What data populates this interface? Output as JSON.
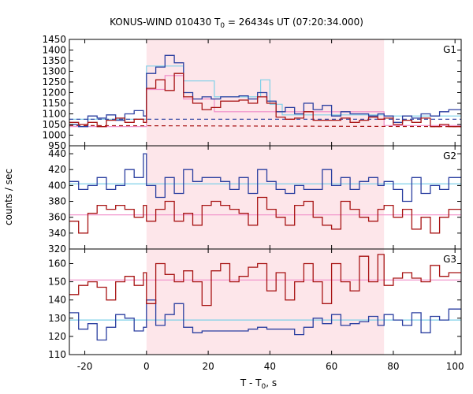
{
  "chart_data": {
    "type": "line",
    "title": "KONUS-WIND 010430 T",
    "title_sub": "0",
    "title_rest": " = 26434s UT (07:20:34.000)",
    "xlabel": "T - T",
    "xlabel_sub": "0",
    "xlabel_rest": ", s",
    "ylabel": "counts / sec",
    "xlim": [
      -25,
      102
    ],
    "x_ticks": [
      -20,
      0,
      20,
      40,
      60,
      80,
      100
    ],
    "x_tick_labels": [
      "-20",
      "0",
      "20",
      "40",
      "60",
      "80",
      "100"
    ],
    "highlight_interval": [
      0,
      77
    ],
    "colors": {
      "blue": "#2b3fa0",
      "red": "#a81414",
      "cyan": "#7ed0e8",
      "pink": "#f08cc8",
      "shade": "#fde6ea"
    },
    "panels": [
      {
        "label": "G1",
        "ylim": [
          950,
          1450
        ],
        "y_ticks": [
          950,
          1000,
          1050,
          1100,
          1150,
          1200,
          1250,
          1300,
          1350,
          1400,
          1450
        ],
        "y_tick_labels": [
          "950",
          "1000",
          "1050",
          "1100",
          "1150",
          "1200",
          "1250",
          "1300",
          "1350",
          "1400",
          "1450"
        ],
        "bin_edges": [
          -25,
          -22,
          -19,
          -16,
          -13,
          -10,
          -7,
          -4,
          -1,
          0,
          3,
          6,
          9,
          12,
          15,
          18,
          21,
          24,
          27,
          30,
          33,
          36,
          39,
          42,
          45,
          48,
          51,
          54,
          57,
          60,
          63,
          66,
          69,
          72,
          75,
          77,
          80,
          83,
          86,
          89,
          92,
          95,
          98,
          102
        ],
        "series": [
          {
            "name": "",
            "color_key": "blue",
            "values": [
              1050,
              1040,
              1090,
              1080,
              1095,
              1070,
              1100,
              1115,
              1090,
              1290,
              1320,
              1375,
              1340,
              1200,
              1170,
              1180,
              1170,
              1180,
              1180,
              1185,
              1170,
              1200,
              1160,
              1110,
              1130,
              1100,
              1150,
              1120,
              1140,
              1090,
              1110,
              1100,
              1100,
              1090,
              1100,
              1090,
              1060,
              1090,
              1080,
              1100,
              1090,
              1110,
              1120
            ]
          },
          {
            "name": "",
            "color_key": "red",
            "values": [
              1060,
              1050,
              1060,
              1040,
              1070,
              1080,
              1060,
              1075,
              1060,
              1220,
              1260,
              1210,
              1290,
              1180,
              1150,
              1120,
              1130,
              1160,
              1160,
              1165,
              1150,
              1180,
              1150,
              1085,
              1075,
              1080,
              1110,
              1070,
              1070,
              1070,
              1080,
              1060,
              1070,
              1085,
              1075,
              1080,
              1050,
              1070,
              1060,
              1080,
              1040,
              1050,
              1040
            ]
          }
        ],
        "models": [
          {
            "color_key": "cyan",
            "dashed": false,
            "xs": [
              -25,
              0,
              0,
              12,
              12,
              22,
              22,
              37,
              37,
              40,
              40,
              44,
              44,
              77,
              77,
              102
            ],
            "ys": [
              1075,
              1075,
              1325,
              1325,
              1255,
              1255,
              1180,
              1180,
              1260,
              1260,
              1145,
              1145,
              1095,
              1095,
              1090,
              1090
            ]
          },
          {
            "color_key": "pink",
            "dashed": false,
            "xs": [
              -25,
              0,
              0,
              6,
              6,
              12,
              12,
              22,
              22,
              77,
              77,
              102
            ],
            "ys": [
              1040,
              1040,
              1215,
              1215,
              1280,
              1280,
              1170,
              1170,
              1110,
              1110,
              1045,
              1045
            ]
          },
          {
            "color_key": "blue",
            "dashed": true,
            "xs": [
              -25,
              102
            ],
            "ys": [
              1075,
              1075
            ]
          },
          {
            "color_key": "red",
            "dashed": true,
            "xs": [
              -25,
              102
            ],
            "ys": [
              1045,
              1040
            ]
          }
        ]
      },
      {
        "label": "G2",
        "ylim": [
          320,
          450
        ],
        "y_ticks": [
          320,
          340,
          360,
          380,
          400,
          420,
          440
        ],
        "y_tick_labels": [
          "320",
          "340",
          "360",
          "380",
          "400",
          "420",
          "440"
        ],
        "bin_edges": [
          -25,
          -22,
          -19,
          -16,
          -13,
          -10,
          -7,
          -4,
          -1,
          0,
          3,
          6,
          9,
          12,
          15,
          18,
          21,
          24,
          27,
          30,
          33,
          36,
          39,
          42,
          45,
          48,
          51,
          54,
          57,
          60,
          63,
          66,
          69,
          72,
          75,
          77,
          80,
          83,
          86,
          89,
          92,
          95,
          98,
          102
        ],
        "series": [
          {
            "name": "",
            "color_key": "blue",
            "values": [
              405,
              395,
              400,
              410,
              395,
              400,
              420,
              410,
              440,
              400,
              385,
              410,
              390,
              420,
              405,
              410,
              410,
              405,
              395,
              410,
              390,
              420,
              405,
              395,
              390,
              400,
              395,
              395,
              420,
              400,
              410,
              395,
              405,
              410,
              400,
              405,
              395,
              380,
              410,
              390,
              400,
              395,
              410
            ]
          },
          {
            "name": "",
            "color_key": "red",
            "values": [
              355,
              340,
              365,
              375,
              370,
              375,
              370,
              360,
              375,
              355,
              370,
              380,
              355,
              365,
              350,
              375,
              380,
              375,
              370,
              365,
              350,
              385,
              370,
              360,
              350,
              375,
              380,
              360,
              350,
              345,
              380,
              370,
              360,
              355,
              370,
              375,
              360,
              370,
              345,
              360,
              340,
              360,
              370
            ]
          }
        ],
        "models": [
          {
            "color_key": "cyan",
            "dashed": false,
            "xs": [
              -25,
              102
            ],
            "ys": [
              402,
              402
            ]
          },
          {
            "color_key": "pink",
            "dashed": false,
            "xs": [
              -25,
              102
            ],
            "ys": [
              363,
              363
            ]
          }
        ]
      },
      {
        "label": "G3",
        "ylim": [
          110,
          168
        ],
        "y_ticks": [
          110,
          120,
          130,
          140,
          150,
          160
        ],
        "y_tick_labels": [
          "110",
          "120",
          "130",
          "140",
          "150",
          "160"
        ],
        "bin_edges": [
          -25,
          -22,
          -19,
          -16,
          -13,
          -10,
          -7,
          -4,
          -1,
          0,
          3,
          6,
          9,
          12,
          15,
          18,
          21,
          24,
          27,
          30,
          33,
          36,
          39,
          42,
          45,
          48,
          51,
          54,
          57,
          60,
          63,
          66,
          69,
          72,
          75,
          77,
          80,
          83,
          86,
          89,
          92,
          95,
          98,
          102
        ],
        "series": [
          {
            "name": "",
            "color_key": "blue",
            "values": [
              133,
              124,
              127,
              118,
              125,
              132,
              130,
              123,
              125,
              140,
              126,
              132,
              138,
              125,
              122,
              123,
              123,
              123,
              123,
              123,
              124,
              125,
              124,
              124,
              124,
              121,
              125,
              130,
              127,
              132,
              126,
              127,
              128,
              131,
              126,
              132,
              129,
              126,
              133,
              122,
              131,
              129,
              135
            ]
          },
          {
            "name": "",
            "color_key": "red",
            "values": [
              143,
              148,
              150,
              147,
              140,
              150,
              153,
              148,
              155,
              138,
              160,
              154,
              150,
              156,
              150,
              137,
              156,
              160,
              150,
              153,
              158,
              160,
              145,
              155,
              140,
              150,
              160,
              150,
              138,
              160,
              150,
              145,
              164,
              150,
              165,
              148,
              152,
              155,
              152,
              150,
              159,
              153,
              155
            ]
          }
        ],
        "models": [
          {
            "color_key": "cyan",
            "dashed": false,
            "xs": [
              -25,
              102
            ],
            "ys": [
              129,
              129
            ]
          },
          {
            "color_key": "pink",
            "dashed": false,
            "xs": [
              -25,
              102
            ],
            "ys": [
              151,
              151
            ]
          }
        ]
      }
    ]
  }
}
